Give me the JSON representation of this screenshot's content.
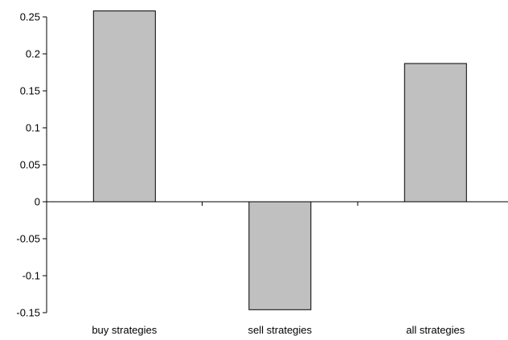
{
  "chart_data": {
    "type": "bar",
    "categories": [
      "buy strategies",
      "sell strategies",
      "all strategies"
    ],
    "values": [
      0.258,
      -0.146,
      0.187
    ],
    "title": "",
    "xlabel": "",
    "ylabel": "",
    "ylim": [
      -0.15,
      0.25
    ],
    "yticks": [
      0.25,
      0.2,
      0.15,
      0.1,
      0.05,
      0,
      -0.05,
      -0.1,
      -0.15
    ],
    "ytick_labels": [
      "0.25",
      "0.2",
      "0.15",
      "0.1",
      "0.05",
      "0",
      "-0.05",
      "-0.1",
      "-0.15"
    ],
    "grid": false,
    "legend": "none",
    "bar_color": "#c0c0c0",
    "bar_edge_color": "#000000"
  }
}
